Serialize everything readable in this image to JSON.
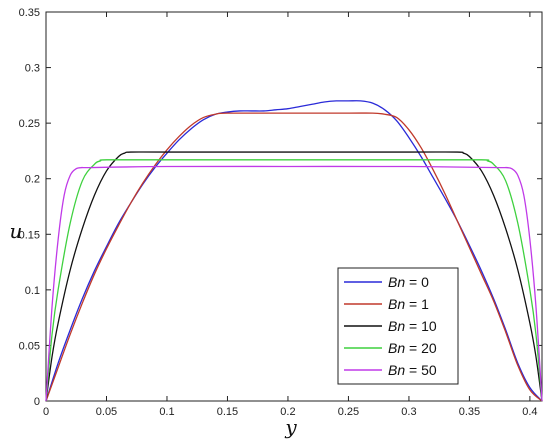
{
  "chart_data": {
    "type": "line",
    "title": "",
    "xlabel": "y",
    "ylabel": "u",
    "xlim": [
      0,
      0.41
    ],
    "ylim": [
      0,
      0.35
    ],
    "xticks": [
      "0",
      "0.05",
      "0.1",
      "0.15",
      "0.2",
      "0.25",
      "0.3",
      "0.35",
      "0.4"
    ],
    "yticks": [
      "0",
      "0.05",
      "0.1",
      "0.15",
      "0.2",
      "0.25",
      "0.3",
      "0.35"
    ],
    "grid": false,
    "legend_position": "bottom-right",
    "series": [
      {
        "name": "Bn = 0",
        "legend_var": "Bn",
        "legend_value": "= 0",
        "color": "#2a2ad8",
        "x": [
          0,
          0.01,
          0.02,
          0.03,
          0.04,
          0.05,
          0.06,
          0.07,
          0.08,
          0.09,
          0.1,
          0.11,
          0.12,
          0.13,
          0.14,
          0.15,
          0.16,
          0.17,
          0.18,
          0.19,
          0.2,
          0.21,
          0.22,
          0.23,
          0.24,
          0.25,
          0.26,
          0.27,
          0.28,
          0.29,
          0.3,
          0.31,
          0.32,
          0.33,
          0.34,
          0.35,
          0.36,
          0.37,
          0.38,
          0.39,
          0.4,
          0.41
        ],
        "y": [
          0,
          0.034,
          0.064,
          0.092,
          0.117,
          0.139,
          0.16,
          0.178,
          0.195,
          0.21,
          0.223,
          0.235,
          0.245,
          0.253,
          0.258,
          0.26,
          0.261,
          0.261,
          0.261,
          0.262,
          0.263,
          0.265,
          0.267,
          0.269,
          0.27,
          0.27,
          0.27,
          0.268,
          0.262,
          0.252,
          0.237,
          0.22,
          0.201,
          0.182,
          0.162,
          0.14,
          0.117,
          0.092,
          0.064,
          0.034,
          0.012,
          0
        ]
      },
      {
        "name": "Bn = 1",
        "legend_var": "Bn",
        "legend_value": "= 1",
        "color": "#c0392b",
        "x": [
          0,
          0.01,
          0.02,
          0.03,
          0.04,
          0.05,
          0.06,
          0.07,
          0.08,
          0.09,
          0.1,
          0.11,
          0.12,
          0.13,
          0.14,
          0.15,
          0.2,
          0.25,
          0.27,
          0.28,
          0.29,
          0.3,
          0.31,
          0.32,
          0.33,
          0.34,
          0.35,
          0.36,
          0.37,
          0.38,
          0.39,
          0.4,
          0.41
        ],
        "y": [
          0,
          0.03,
          0.06,
          0.088,
          0.114,
          0.137,
          0.158,
          0.178,
          0.196,
          0.212,
          0.226,
          0.238,
          0.248,
          0.255,
          0.258,
          0.259,
          0.259,
          0.259,
          0.259,
          0.258,
          0.255,
          0.244,
          0.228,
          0.208,
          0.186,
          0.162,
          0.138,
          0.114,
          0.09,
          0.062,
          0.032,
          0.01,
          0
        ]
      },
      {
        "name": "Bn = 10",
        "legend_var": "Bn",
        "legend_value": "= 10",
        "color": "#111111",
        "x": [
          0,
          0.005,
          0.01,
          0.02,
          0.03,
          0.04,
          0.05,
          0.06,
          0.065,
          0.07,
          0.1,
          0.2,
          0.3,
          0.34,
          0.345,
          0.35,
          0.36,
          0.37,
          0.38,
          0.39,
          0.4,
          0.405,
          0.41
        ],
        "y": [
          0,
          0.04,
          0.07,
          0.118,
          0.155,
          0.185,
          0.207,
          0.22,
          0.223,
          0.224,
          0.224,
          0.224,
          0.224,
          0.224,
          0.223,
          0.22,
          0.207,
          0.185,
          0.155,
          0.118,
          0.07,
          0.04,
          0
        ],
        "_": "x/y paired by index"
      },
      {
        "name": "Bn = 20",
        "legend_var": "Bn",
        "legend_value": "= 20",
        "color": "#3fd13f",
        "x": [
          0,
          0.005,
          0.01,
          0.02,
          0.03,
          0.04,
          0.045,
          0.05,
          0.1,
          0.2,
          0.3,
          0.36,
          0.365,
          0.37,
          0.38,
          0.39,
          0.4,
          0.405,
          0.41
        ],
        "y": [
          0,
          0.06,
          0.1,
          0.16,
          0.198,
          0.213,
          0.216,
          0.217,
          0.217,
          0.217,
          0.217,
          0.217,
          0.216,
          0.213,
          0.198,
          0.16,
          0.1,
          0.06,
          0
        ]
      },
      {
        "name": "Bn = 50",
        "legend_var": "Bn",
        "legend_value": "= 50",
        "color": "#c03ae8",
        "x": [
          0,
          0.005,
          0.01,
          0.015,
          0.02,
          0.025,
          0.03,
          0.035,
          0.1,
          0.2,
          0.3,
          0.375,
          0.38,
          0.385,
          0.39,
          0.395,
          0.4,
          0.405,
          0.41
        ],
        "y": [
          0,
          0.085,
          0.145,
          0.185,
          0.203,
          0.209,
          0.21,
          0.21,
          0.211,
          0.211,
          0.211,
          0.21,
          0.21,
          0.209,
          0.203,
          0.185,
          0.145,
          0.085,
          0
        ]
      }
    ]
  }
}
